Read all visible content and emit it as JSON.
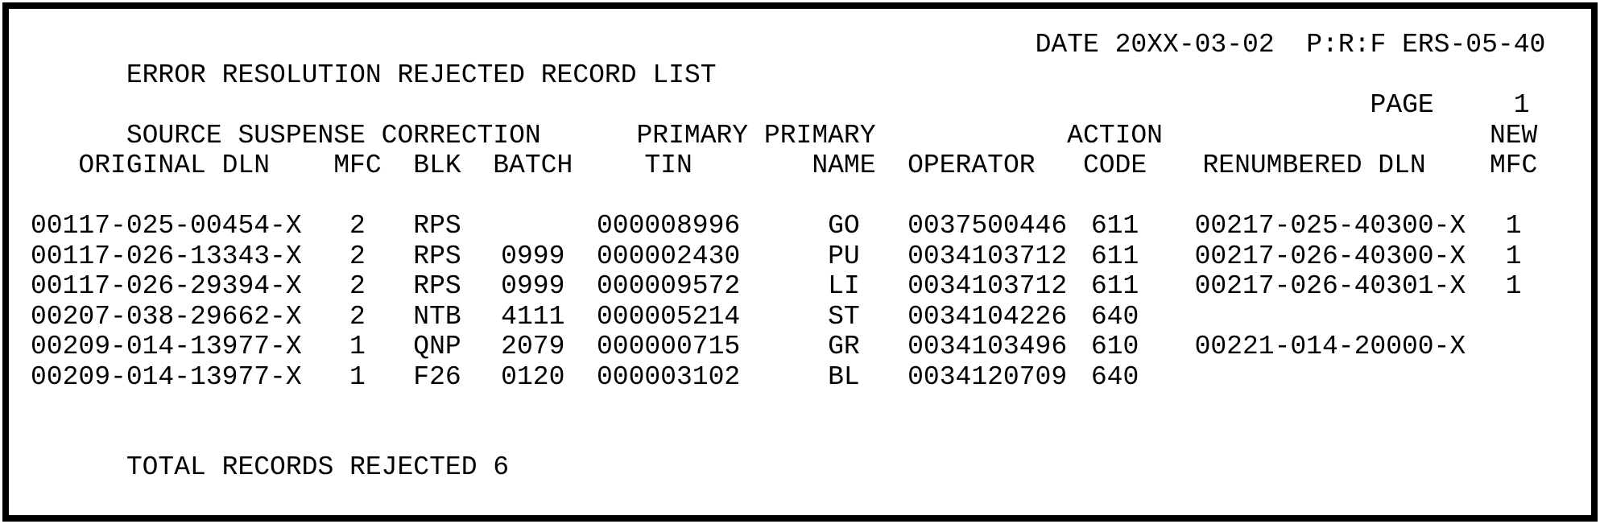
{
  "header": {
    "title": "ERROR RESOLUTION REJECTED RECORD LIST",
    "date_label": "DATE",
    "date_value": "20XX-03-02",
    "report_id": "P:R:F ERS-05-40",
    "subtitle": "SOURCE SUSPENSE CORRECTION",
    "page_label": "PAGE",
    "page_number": "1"
  },
  "table": {
    "header_top": {
      "tin": "PRIMARY",
      "name": "PRIMARY",
      "code": "ACTION",
      "new_mfc": "NEW"
    },
    "header": {
      "original_dln": "ORIGINAL DLN",
      "mfc": "MFC",
      "blk": "BLK",
      "batch": "BATCH",
      "tin": "TIN",
      "name": "NAME",
      "operator": "OPERATOR",
      "code": "CODE",
      "renumbered_dln": "RENUMBERED DLN",
      "new_mfc": "MFC"
    },
    "rows": [
      {
        "original_dln": "00117-025-00454-X",
        "mfc": "2",
        "blk": "RPS",
        "batch": "",
        "tin": "000008996",
        "name": "GO",
        "operator": "0037500446",
        "code": "611",
        "renumbered_dln": "00217-025-40300-X",
        "new_mfc": "1"
      },
      {
        "original_dln": "00117-026-13343-X",
        "mfc": "2",
        "blk": "RPS",
        "batch": "0999",
        "tin": "000002430",
        "name": "PU",
        "operator": "0034103712",
        "code": "611",
        "renumbered_dln": "00217-026-40300-X",
        "new_mfc": "1"
      },
      {
        "original_dln": "00117-026-29394-X",
        "mfc": "2",
        "blk": "RPS",
        "batch": "0999",
        "tin": "000009572",
        "name": "LI",
        "operator": "0034103712",
        "code": "611",
        "renumbered_dln": "00217-026-40301-X",
        "new_mfc": "1"
      },
      {
        "original_dln": "00207-038-29662-X",
        "mfc": "2",
        "blk": "NTB",
        "batch": "4111",
        "tin": "000005214",
        "name": "ST",
        "operator": "0034104226",
        "code": "640",
        "renumbered_dln": "",
        "new_mfc": ""
      },
      {
        "original_dln": "00209-014-13977-X",
        "mfc": "1",
        "blk": "QNP",
        "batch": "2079",
        "tin": "000000715",
        "name": "GR",
        "operator": "0034103496",
        "code": "610",
        "renumbered_dln": "00221-014-20000-X",
        "new_mfc": ""
      },
      {
        "original_dln": "00209-014-13977-X",
        "mfc": "1",
        "blk": "F26",
        "batch": "0120",
        "tin": "000003102",
        "name": "BL",
        "operator": "0034120709",
        "code": "640",
        "renumbered_dln": "",
        "new_mfc": ""
      }
    ]
  },
  "footer": {
    "total_label": "TOTAL RECORDS REJECTED",
    "total_value": "6"
  }
}
